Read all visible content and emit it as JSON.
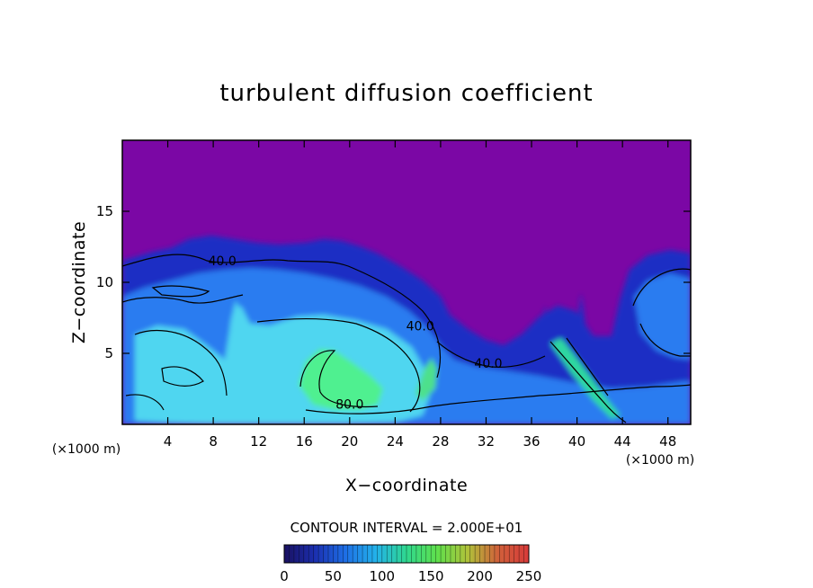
{
  "chart_data": {
    "type": "heatmap",
    "title": "turbulent diffusion coefficient",
    "xlabel": "X−coordinate",
    "ylabel": "Z−coordinate",
    "x_unit_left": "(×1000 m)",
    "x_unit_right": "(×1000 m)",
    "xlim": [
      0,
      50
    ],
    "ylim": [
      0,
      20
    ],
    "xticks": [
      4,
      8,
      12,
      16,
      20,
      24,
      28,
      32,
      36,
      40,
      44,
      48
    ],
    "xtick_labels": [
      "4",
      "8",
      "12",
      "16",
      "20",
      "24",
      "28",
      "32",
      "36",
      "40",
      "44",
      "48"
    ],
    "yticks": [
      5,
      10,
      15
    ],
    "ytick_labels": [
      "5",
      "10",
      "15"
    ],
    "contour_interval_text": "CONTOUR INTERVAL = 2.000E+01",
    "contour_labels": [
      {
        "text": "40.0",
        "x": 8.8,
        "z": 11.2
      },
      {
        "text": "40.0",
        "x": 26.2,
        "z": 6.6
      },
      {
        "text": "40.0",
        "x": 32.2,
        "z": 4.0
      },
      {
        "text": "80.0",
        "x": 20.0,
        "z": 1.1
      }
    ],
    "colorbar": {
      "min": 0,
      "max": 250,
      "ticks": [
        0,
        50,
        100,
        150,
        200,
        250
      ],
      "tick_labels": [
        "0",
        "50",
        "100",
        "150",
        "200",
        "250"
      ],
      "colors": [
        "#1a1060",
        "#1b2fb0",
        "#1e6fe6",
        "#23b2ea",
        "#2fd88f",
        "#5fe04c",
        "#b0c23a",
        "#d0603a",
        "#d83a3a"
      ]
    },
    "field_colors": {
      "background": "#7b07a5",
      "low": "#1d2fc4",
      "mid": "#2b7cf0",
      "high": "#4fd6f0",
      "peak": "#50f090"
    }
  }
}
